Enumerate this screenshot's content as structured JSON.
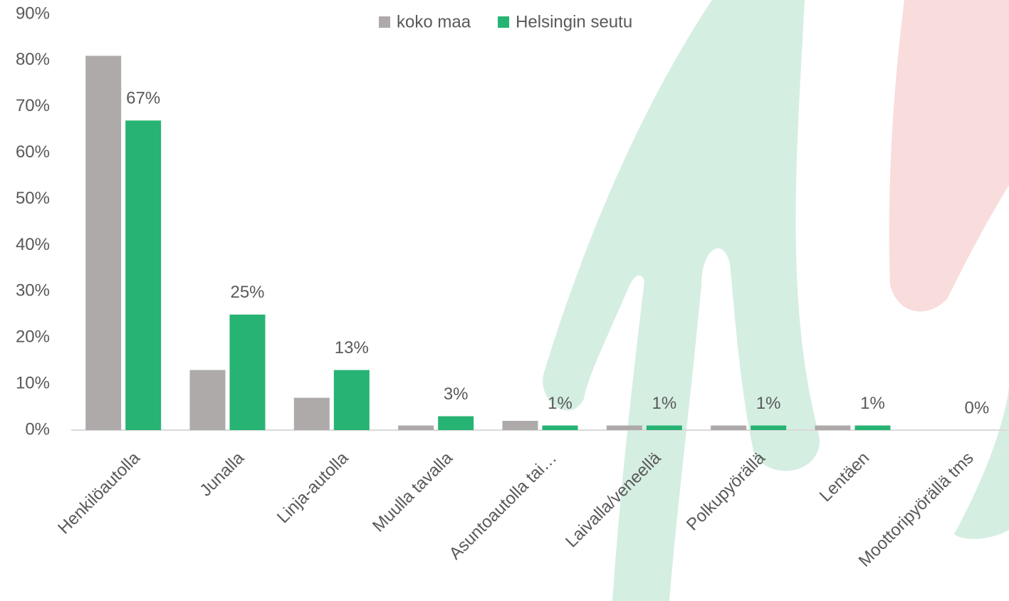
{
  "chart_data": {
    "type": "bar",
    "categories": [
      "Henkilöautolla",
      "Junalla",
      "Linja-autolla",
      "Muulla tavalla",
      "Asuntoautolla tai…",
      "Laivalla/veneellä",
      "Polkupyörällä",
      "Lentäen",
      "Moottoripyörällä tms"
    ],
    "series": [
      {
        "name": "koko maa",
        "color": "#aeaaaa",
        "values": [
          81,
          13,
          7,
          1,
          2,
          1,
          1,
          1,
          0
        ]
      },
      {
        "name": "Helsingin seutu",
        "color": "#27b373",
        "values": [
          67,
          25,
          13,
          3,
          1,
          1,
          1,
          1,
          0
        ],
        "value_labels": [
          "67%",
          "25%",
          "13%",
          "3%",
          "1%",
          "1%",
          "1%",
          "1%",
          "0%"
        ]
      }
    ],
    "ylim": [
      0,
      90
    ],
    "yticks": [
      {
        "value": 0,
        "label": "0%"
      },
      {
        "value": 10,
        "label": "10%"
      },
      {
        "value": 20,
        "label": "20%"
      },
      {
        "value": 30,
        "label": "30%"
      },
      {
        "value": 40,
        "label": "40%"
      },
      {
        "value": 50,
        "label": "50%"
      },
      {
        "value": 60,
        "label": "60%"
      },
      {
        "value": 70,
        "label": "70%"
      },
      {
        "value": 80,
        "label": "80%"
      },
      {
        "value": 90,
        "label": "90%"
      }
    ],
    "legend": "top"
  }
}
